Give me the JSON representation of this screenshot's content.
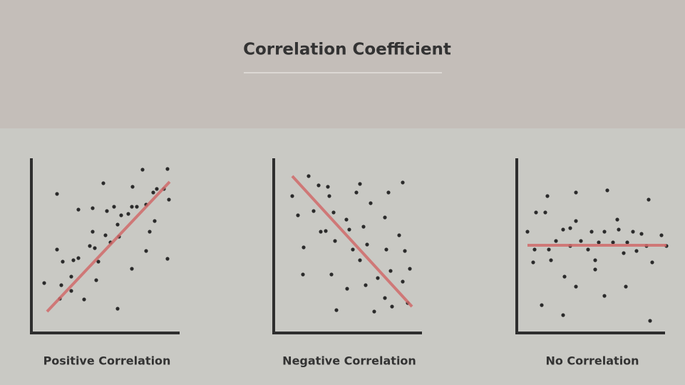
{
  "title": "Correlation Coefficient",
  "chart_data": [
    {
      "type": "scatter",
      "title": "Positive Correlation",
      "color": "#2b2b2b",
      "xlim": [
        0,
        208
      ],
      "ylim": [
        0,
        245
      ],
      "x": [
        36,
        36,
        18,
        42,
        56,
        40,
        74,
        44,
        59,
        66,
        66,
        86,
        86,
        82,
        89,
        101,
        106,
        104,
        94,
        111,
        116,
        121,
        123,
        126,
        142,
        141,
        148,
        136,
        156,
        161,
        166,
        171,
        176,
        186,
        191,
        193,
        173,
        161,
        191,
        141,
        121,
        91,
        56
      ],
      "values": [
        195,
        117,
        70,
        67,
        59,
        48,
        47,
        100,
        102,
        105,
        173,
        175,
        142,
        122,
        119,
        210,
        171,
        137,
        100,
        127,
        177,
        152,
        135,
        165,
        205,
        177,
        177,
        167,
        229,
        180,
        142,
        197,
        202,
        202,
        230,
        187,
        157,
        115,
        104,
        90,
        34,
        74,
        79
      ],
      "trend": {
        "x": [
          22,
          194
        ],
        "y": [
          30,
          212
        ],
        "color": "#d06a6a"
      }
    },
    {
      "type": "scatter",
      "title": "Negative Correlation",
      "color": "#2b2b2b",
      "xlim": [
        0,
        208
      ],
      "ylim": [
        0,
        245
      ],
      "x": [
        26,
        49,
        63,
        76,
        78,
        34,
        56,
        42,
        41,
        66,
        84,
        86,
        81,
        88,
        102,
        106,
        116,
        121,
        111,
        103,
        121,
        126,
        131,
        136,
        129,
        141,
        146,
        156,
        161,
        158,
        164,
        156,
        181,
        176,
        184,
        191,
        181,
        166,
        188,
        73
      ],
      "values": [
        192,
        220,
        207,
        205,
        192,
        165,
        171,
        120,
        82,
        142,
        169,
        129,
        82,
        32,
        159,
        145,
        197,
        209,
        117,
        62,
        102,
        149,
        124,
        182,
        67,
        30,
        77,
        162,
        197,
        117,
        87,
        49,
        211,
        137,
        115,
        90,
        72,
        37,
        42,
        143
      ],
      "trend": {
        "x": [
          26,
          194
        ],
        "y": [
          220,
          37
        ],
        "color": "#d06a6a"
      }
    },
    {
      "type": "scatter",
      "title": "No Correlation",
      "color": "#2b2b2b",
      "xlim": [
        0,
        208
      ],
      "ylim": [
        0,
        245
      ],
      "x": [
        27,
        40,
        43,
        83,
        127,
        185,
        15,
        25,
        45,
        23,
        48,
        55,
        65,
        75,
        83,
        90,
        105,
        110,
        115,
        123,
        135,
        141,
        143,
        150,
        155,
        163,
        168,
        175,
        182,
        190,
        203,
        210,
        67,
        83,
        110,
        123,
        153,
        35,
        65,
        187,
        75,
        100
      ],
      "values": [
        169,
        169,
        192,
        197,
        200,
        187,
        142,
        117,
        117,
        99,
        102,
        129,
        145,
        122,
        157,
        129,
        142,
        102,
        127,
        142,
        127,
        159,
        145,
        112,
        127,
        142,
        115,
        139,
        122,
        99,
        137,
        122,
        79,
        65,
        89,
        52,
        65,
        39,
        25,
        17,
        147,
        117
      ],
      "trend": {
        "x": [
          15,
          210
        ],
        "y": [
          123,
          123
        ],
        "color": "#d06a6a"
      }
    }
  ]
}
